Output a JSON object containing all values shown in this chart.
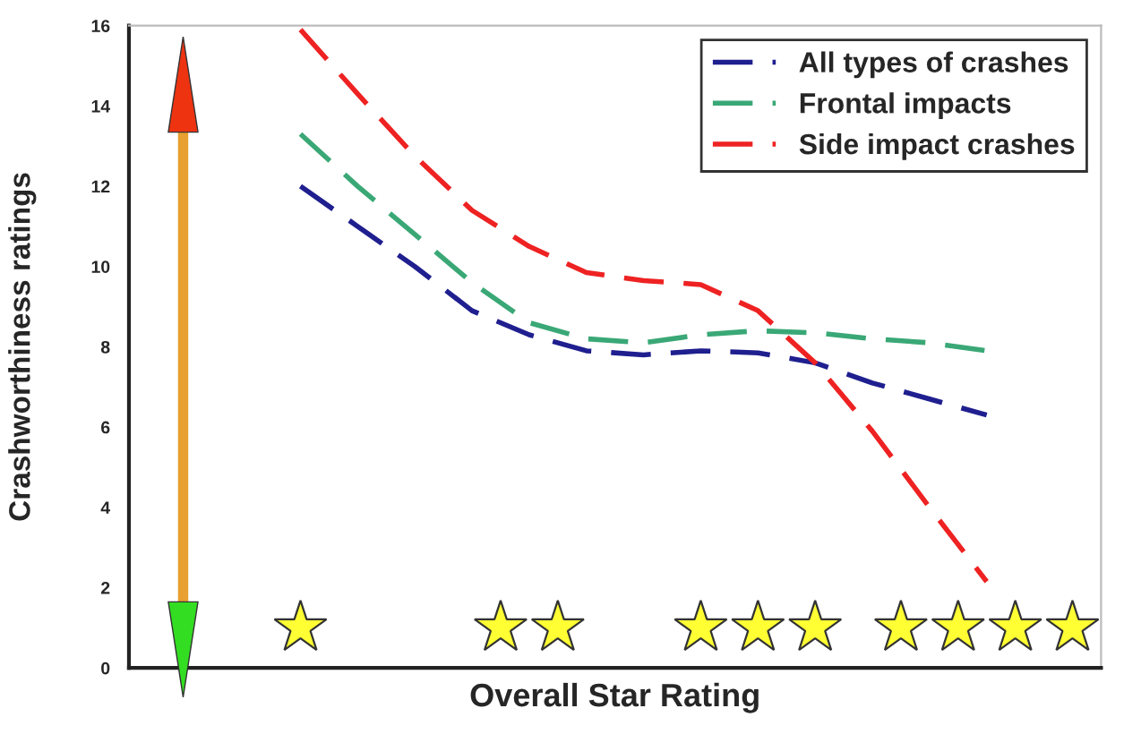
{
  "chart_data": {
    "type": "line",
    "xlabel": "Overall Star Rating",
    "ylabel": "Crashworthiness ratings",
    "categories": [
      null,
      null,
      null,
      null,
      null,
      null,
      null,
      null,
      null,
      null,
      null,
      null,
      null
    ],
    "ylim": [
      0,
      16
    ],
    "yticks": [
      0,
      2,
      4,
      6,
      8,
      10,
      12,
      14,
      16
    ],
    "tick_labels": "y",
    "legend": "top right",
    "grid": false,
    "marker": "none",
    "line_style": "dashed",
    "series": [
      {
        "name": "All types of crashes",
        "color": "#1f1f8f",
        "values": [
          12.0,
          11.0,
          10.0,
          8.9,
          8.3,
          7.9,
          7.8,
          7.9,
          7.85,
          7.6,
          7.1,
          6.7,
          6.3
        ]
      },
      {
        "name": "Frontal impacts",
        "color": "#3aa876",
        "values": [
          13.3,
          12.0,
          10.8,
          9.6,
          8.6,
          8.2,
          8.1,
          8.3,
          8.4,
          8.35,
          8.2,
          8.1,
          7.9
        ]
      },
      {
        "name": "Side impact crashes",
        "color": "#ee2222",
        "values": [
          15.9,
          14.3,
          12.75,
          11.4,
          10.5,
          9.85,
          9.65,
          9.55,
          8.9,
          7.6,
          5.9,
          4.0,
          2.15
        ]
      }
    ]
  }
}
